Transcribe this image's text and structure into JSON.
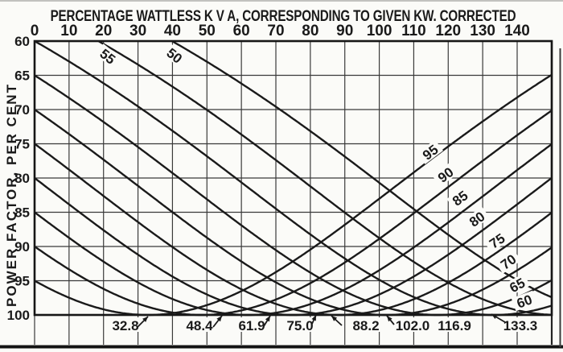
{
  "chart_data": {
    "type": "line",
    "title": "PERCENTAGE WATTLESS K V A, CORRESPONDING TO GIVEN KW. CORRECTED",
    "x_axis": {
      "position": "top",
      "ticks": [
        0,
        10,
        20,
        30,
        40,
        50,
        60,
        70,
        80,
        90,
        100,
        110,
        120,
        130,
        140
      ],
      "range": [
        0,
        150
      ]
    },
    "y_axis": {
      "label": "POWER FACTOR, PER CENT",
      "ticks": [
        60,
        65,
        70,
        75,
        80,
        85,
        90,
        95,
        100
      ],
      "range": [
        60,
        100
      ],
      "inverted": true
    },
    "grid": true,
    "ink_color": "#1a1a1a",
    "paper_color": "#fbfbf8",
    "curves": [
      {
        "label": "50",
        "pf": 50
      },
      {
        "label": "55",
        "pf": 55
      },
      {
        "label": "60",
        "pf": 60
      },
      {
        "label": "65",
        "pf": 65
      },
      {
        "label": "70",
        "pf": 70
      },
      {
        "label": "75",
        "pf": 75
      },
      {
        "label": "80",
        "pf": 80
      },
      {
        "label": "85",
        "pf": 85
      },
      {
        "label": "90",
        "pf": 90
      },
      {
        "label": "95",
        "pf": 95
      }
    ],
    "curve_relation": "Each curve is labeled with an uncorrected power factor, per cent; y gives the corrected power factor when x per cent wattless kVA (of given kW) is supplied. Each curve reaches 100 per cent power factor at x = 100*tan(arccos(pf/100)).",
    "annotations": [
      {
        "text": "32.8",
        "curve": "95",
        "arrow": "ne"
      },
      {
        "text": "48.4",
        "curve": "90",
        "arrow": "ne"
      },
      {
        "text": "61.9",
        "curve": "85",
        "arrow": "ne"
      },
      {
        "text": "75.0",
        "curve": "80",
        "arrow": "ne"
      },
      {
        "text": "88.2",
        "curve": "75",
        "arrow": "nw"
      },
      {
        "text": "102.0",
        "curve": "70",
        "arrow": "nw"
      },
      {
        "text": "116.9",
        "curve": "65",
        "arrow": "none"
      },
      {
        "text": "133.3",
        "curve": "60",
        "arrow": "nw"
      }
    ]
  }
}
